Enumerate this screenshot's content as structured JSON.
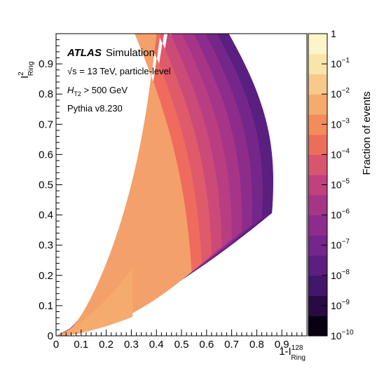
{
  "chart_data": {
    "type": "heatmap",
    "title": "",
    "xlabel_main": "1-I",
    "xlabel_sup": "128",
    "xlabel_sub": "Ring",
    "ylabel_main": "I",
    "ylabel_sup": "2",
    "ylabel_sub": "Ring",
    "xlim": [
      0,
      1
    ],
    "ylim": [
      0,
      1
    ],
    "x_ticks": [
      0,
      0.1,
      0.2,
      0.3,
      0.4,
      0.5,
      0.6,
      0.7,
      0.8,
      0.9
    ],
    "x_tick_labels": [
      "0",
      "0.1",
      "0.2",
      "0.3",
      "0.4",
      "0.5",
      "0.6",
      "0.7",
      "0.8",
      "0.9"
    ],
    "y_ticks": [
      0,
      0.1,
      0.2,
      0.3,
      0.4,
      0.5,
      0.6,
      0.7,
      0.8,
      0.9
    ],
    "y_tick_labels": [
      "0",
      "0.1",
      "0.2",
      "0.3",
      "0.4",
      "0.5",
      "0.6",
      "0.7",
      "0.8",
      "0.9"
    ],
    "colorbar": {
      "label": "Fraction of events",
      "scale": "log",
      "min_exponent": -10,
      "max_exponent": 0,
      "tick_labels": [
        {
          "base": "1",
          "exp": ""
        },
        {
          "base": "10",
          "exp": "−1"
        },
        {
          "base": "10",
          "exp": "−2"
        },
        {
          "base": "10",
          "exp": "−3"
        },
        {
          "base": "10",
          "exp": "−4"
        },
        {
          "base": "10",
          "exp": "−5"
        },
        {
          "base": "10",
          "exp": "−6"
        },
        {
          "base": "10",
          "exp": "−7"
        },
        {
          "base": "10",
          "exp": "−8"
        },
        {
          "base": "10",
          "exp": "−9"
        },
        {
          "base": "10",
          "exp": "−10"
        }
      ],
      "colors": [
        "#0a0014",
        "#2a0a42",
        "#421769",
        "#5a1f80",
        "#742689",
        "#8e2c8c",
        "#a63588",
        "#c0417e",
        "#d8556f",
        "#eb6e5b",
        "#f28c5c",
        "#f5ab6e",
        "#f7c98b",
        "#f9e5aa",
        "#fbf5c7"
      ]
    },
    "density_levels": [
      {
        "fraction": "1e-10",
        "color": "#5a1f80"
      },
      {
        "fraction": "1e-9",
        "color": "#742689"
      },
      {
        "fraction": "1e-8",
        "color": "#8e2c8c"
      },
      {
        "fraction": "1e-7",
        "color": "#a63588"
      },
      {
        "fraction": "1e-6",
        "color": "#b93d83"
      },
      {
        "fraction": "1e-5",
        "color": "#cc4a77"
      },
      {
        "fraction": "1e-4",
        "color": "#df5a6a"
      },
      {
        "fraction": "1e-3",
        "color": "#ef6b5e"
      },
      {
        "fraction": "1e-2",
        "color": "#f4a06a"
      }
    ],
    "grid": false,
    "legend_position": "top-left"
  },
  "annotations": {
    "atlas": "ATLAS",
    "simulation": "Simulation",
    "energy_sqrt": "√s",
    "energy_rest": " = 13 TeV, particle-level",
    "ht_main": "H",
    "ht_sub": "T2",
    "ht_rest": " > 500 GeV",
    "generator": "Pythia v8.230"
  }
}
